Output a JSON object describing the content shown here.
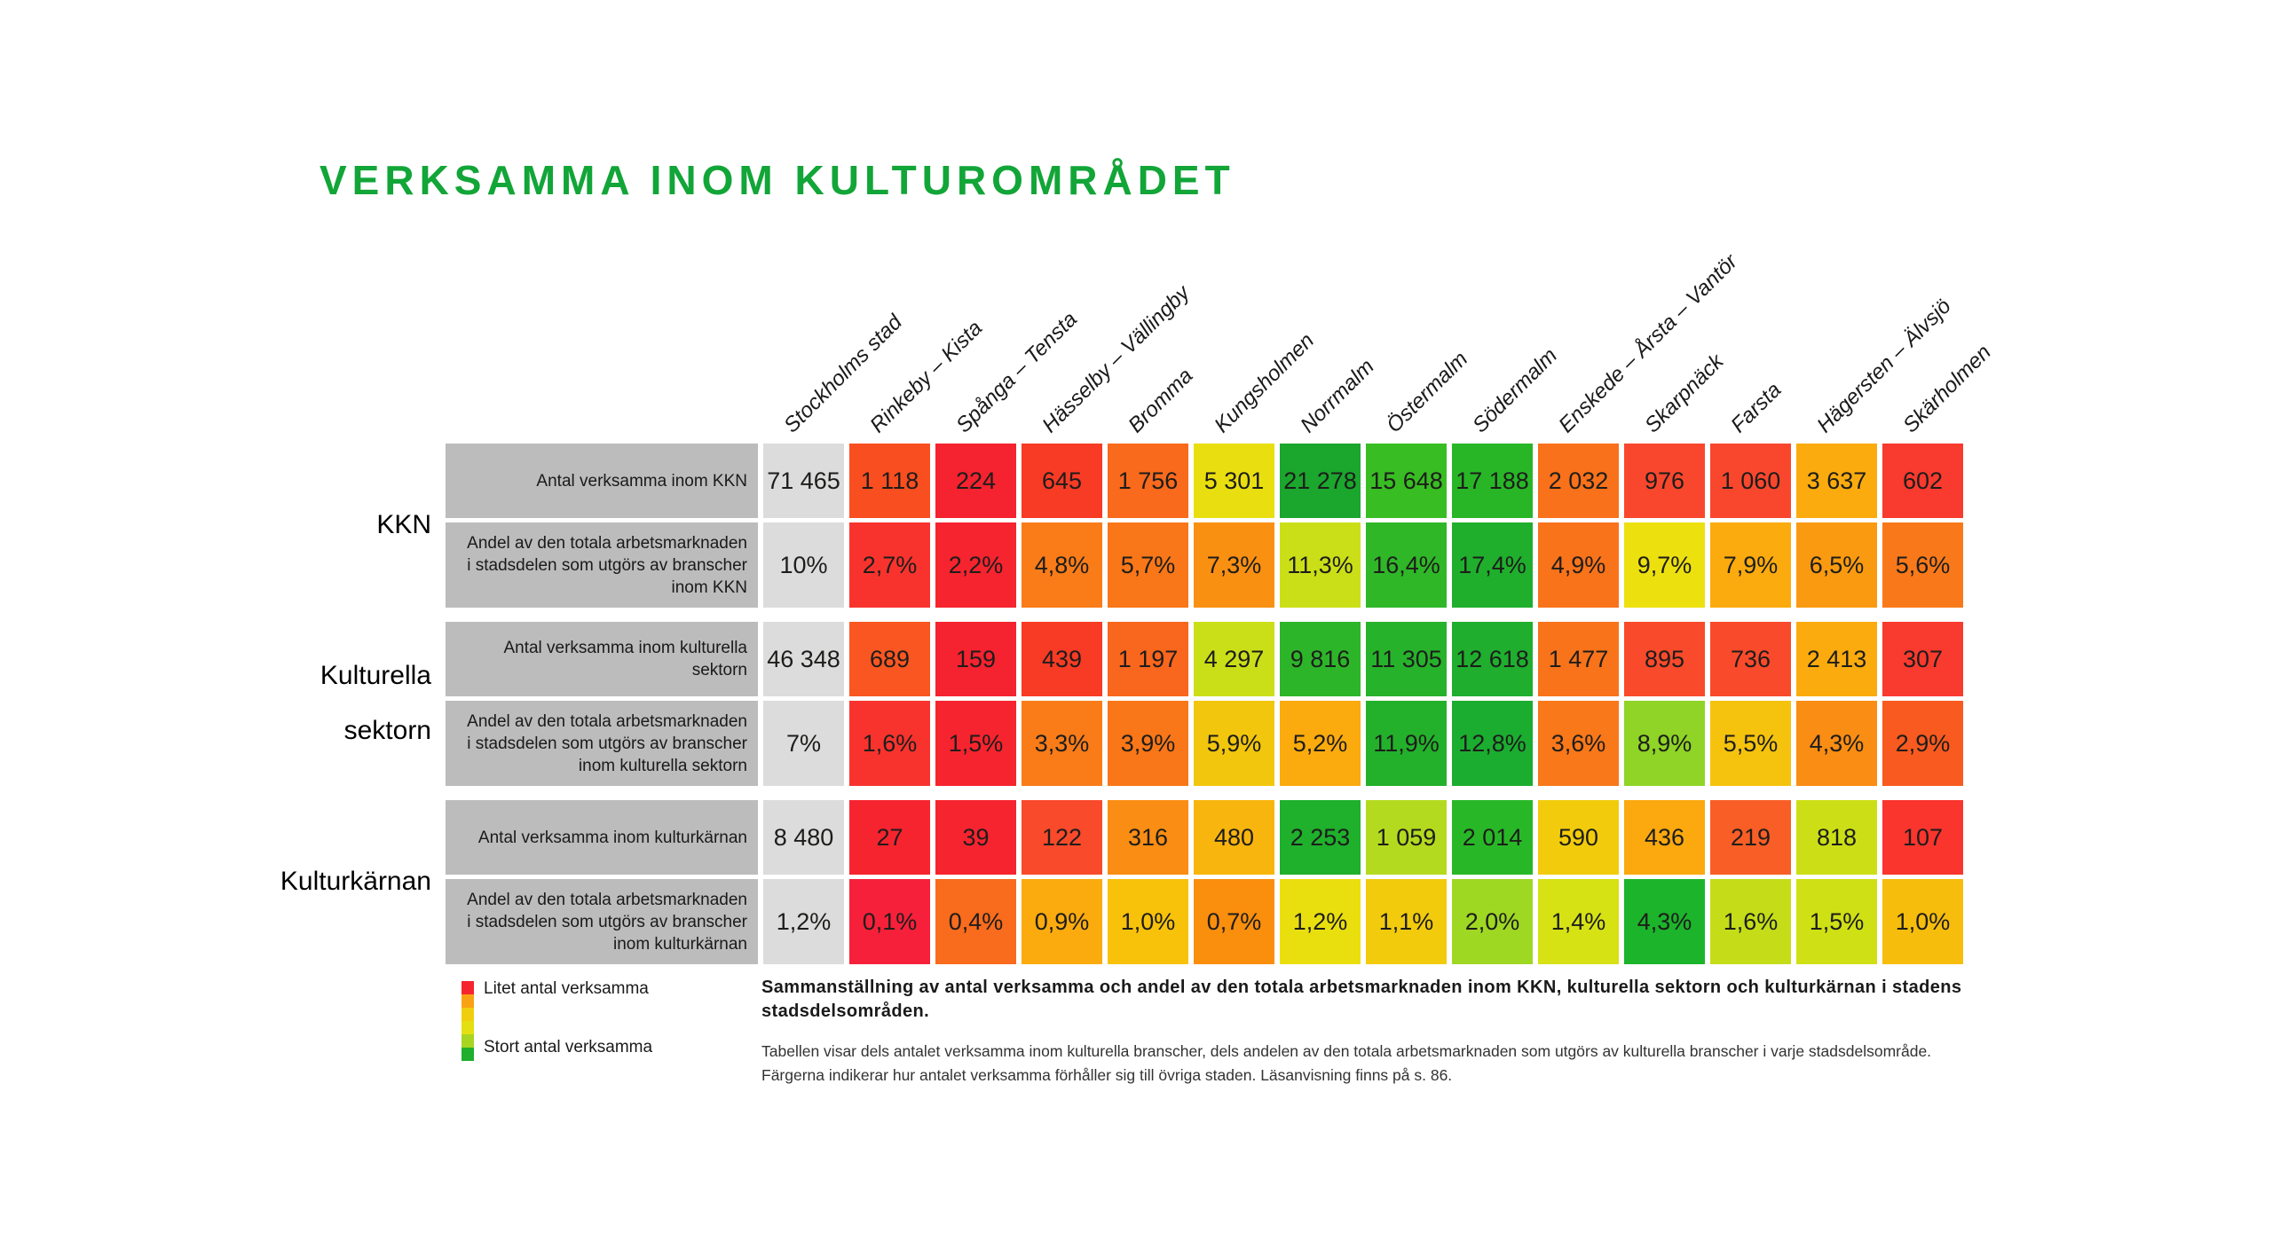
{
  "title": "VERKSAMMA INOM KULTUROMRÅDET",
  "accent_color": "#12A538",
  "chart_data": {
    "type": "heatmap",
    "title": "VERKSAMMA INOM KULTUROMRÅDET",
    "columns": [
      "Stockholms stad",
      "Rinkeby – Kista",
      "Spånga – Tensta",
      "Hässelby – Vällingby",
      "Bromma",
      "Kungsholmen",
      "Norrmalm",
      "Östermalm",
      "Södermalm",
      "Enskede – Årsta – Vantör",
      "Skarpnäck",
      "Farsta",
      "Hägersten – Älvsjö",
      "Skärholmen"
    ],
    "baseline_column_color": "#DCDCDC",
    "label_cell_color": "#BCBCBC",
    "sections": [
      {
        "label": "KKN",
        "rows": [
          {
            "label": "Antal verksamma inom KKN",
            "values": [
              "71 465",
              "1 118",
              "224",
              "645",
              "1 756",
              "5 301",
              "21 278",
              "15 648",
              "17 188",
              "2 032",
              "976",
              "1 060",
              "3 637",
              "602"
            ],
            "colors": [
              "#DCDCDC",
              "#F94E1F",
              "#F5222F",
              "#F83B25",
              "#F96A1C",
              "#E9DF10",
              "#1BA62D",
              "#38BD22",
              "#28B627",
              "#F9711B",
              "#F9472E",
              "#F9472E",
              "#FBAB0E",
              "#F93A2E"
            ]
          },
          {
            "label": "Andel av den totala arbetsmarknaden i stadsdelen som utgörs av branscher inom KKN",
            "values": [
              "10%",
              "2,7%",
              "2,2%",
              "4,8%",
              "5,7%",
              "7,3%",
              "11,3%",
              "16,4%",
              "17,4%",
              "4,9%",
              "9,7%",
              "7,9%",
              "6,5%",
              "5,6%"
            ],
            "colors": [
              "#DCDCDC",
              "#F8332E",
              "#F6242F",
              "#F97C19",
              "#F97718",
              "#FA9012",
              "#CBDF18",
              "#2FB728",
              "#1FAF2D",
              "#F9731B",
              "#EDE00F",
              "#FBAB0E",
              "#FA9A10",
              "#F9791A"
            ]
          }
        ]
      },
      {
        "label": "Kulturella\nsektorn",
        "rows": [
          {
            "label": "Antal verksamma inom kulturella sektorn",
            "values": [
              "46 348",
              "689",
              "159",
              "439",
              "1 197",
              "4 297",
              "9 816",
              "11 305",
              "12 618",
              "1 477",
              "895",
              "736",
              "2 413",
              "307"
            ],
            "colors": [
              "#DCDCDC",
              "#F95621",
              "#F5222F",
              "#F83B25",
              "#F9661D",
              "#CBDF18",
              "#2DB529",
              "#27B22B",
              "#1FAE2E",
              "#F9731B",
              "#F94A2B",
              "#F94A2B",
              "#FBAB0E",
              "#F93A2E"
            ]
          },
          {
            "label": "Andel av den totala arbetsmarknaden i stadsdelen som utgörs av branscher inom kulturella sektorn",
            "values": [
              "7%",
              "1,6%",
              "1,5%",
              "3,3%",
              "3,9%",
              "5,9%",
              "5,2%",
              "11,9%",
              "12,8%",
              "3,6%",
              "8,9%",
              "5,5%",
              "4,3%",
              "2,9%"
            ],
            "colors": [
              "#DCDCDC",
              "#F8332E",
              "#F6242F",
              "#F97C19",
              "#F97718",
              "#F2C60D",
              "#FBAB0E",
              "#23B12B",
              "#1BAD2F",
              "#F9781A",
              "#8FD426",
              "#F5C30E",
              "#FA8D13",
              "#F95A20"
            ]
          }
        ]
      },
      {
        "label": "Kulturkärnan",
        "rows": [
          {
            "label": "Antal verksamma inom kulturkärnan",
            "values": [
              "8 480",
              "27",
              "39",
              "122",
              "316",
              "480",
              "2 253",
              "1 059",
              "2 014",
              "590",
              "436",
              "219",
              "818",
              "107"
            ],
            "colors": [
              "#DCDCDC",
              "#F6242F",
              "#F6242F",
              "#F94A2B",
              "#FA8D13",
              "#F8B50D",
              "#1FB02C",
              "#B4DA20",
              "#28B827",
              "#F2CC0C",
              "#FBA90F",
              "#F95E26",
              "#CCDF16",
              "#F9352E"
            ]
          },
          {
            "label": "Andel av den totala arbetsmarknaden i stadsdelen som utgörs av branscher inom kulturkärnan",
            "values": [
              "1,2%",
              "0,1%",
              "0,4%",
              "0,9%",
              "1,0%",
              "0,7%",
              "1,2%",
              "1,1%",
              "2,0%",
              "1,4%",
              "4,3%",
              "1,6%",
              "1,5%",
              "1,0%"
            ],
            "colors": [
              "#DCDCDC",
              "#F6203A",
              "#F96B1D",
              "#FBAB0E",
              "#F8C20B",
              "#FA8E0D",
              "#EADF0E",
              "#F2CB0D",
              "#9FD823",
              "#D6E214",
              "#1CB42B",
              "#C4DD18",
              "#CFE015",
              "#F7BD0C"
            ]
          }
        ]
      }
    ],
    "legend": {
      "low_label": "Litet antal verksamma",
      "high_label": "Stort antal verksamma",
      "gradient": [
        "#F6242F",
        "#F9A214",
        "#F0CE0D",
        "#E4DF10",
        "#A8D521",
        "#1FAF2C"
      ]
    }
  },
  "caption": {
    "heading": "Sammanställning av antal verksamma och andel av den totala arbetsmarknaden inom KKN, kulturella sektorn och kulturkärnan i stadens stadsdelsområden.",
    "body_line1": "Tabellen visar dels antalet verksamma inom kulturella branscher, dels andelen av den totala arbetsmarknaden som utgörs av kulturella branscher i varje stadsdelsområde.",
    "body_line2": "Färgerna indikerar hur antalet verksamma förhåller sig till övriga staden. Läsanvisning finns på s. 86."
  }
}
